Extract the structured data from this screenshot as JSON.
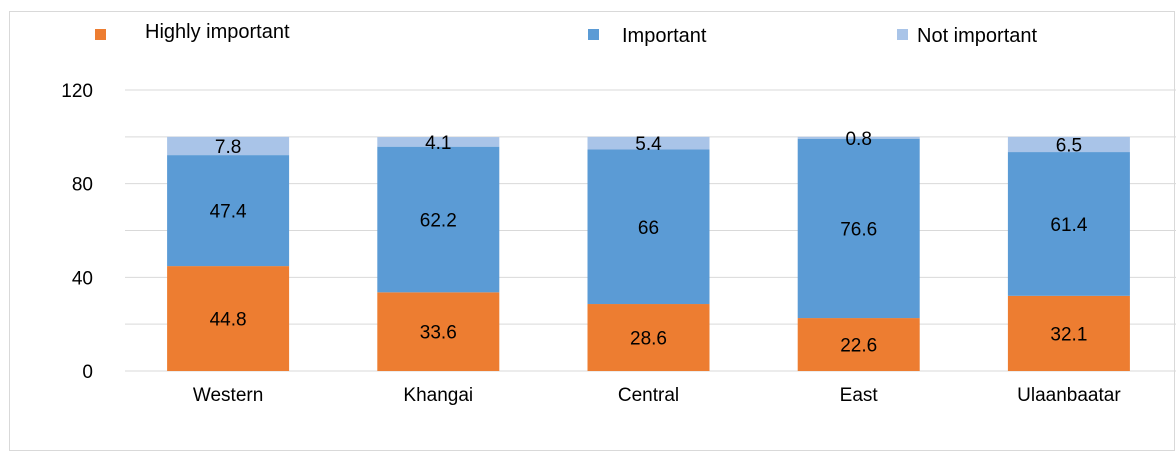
{
  "chart_data": {
    "type": "bar",
    "stacked": true,
    "categories": [
      "Western",
      "Khangai",
      "Central",
      "East",
      "Ulaanbaatar"
    ],
    "series": [
      {
        "name": "Highly important",
        "color": "#ED7D31",
        "values": [
          44.8,
          33.6,
          28.6,
          22.6,
          32.1
        ]
      },
      {
        "name": "Important",
        "color": "#5B9BD5",
        "values": [
          47.4,
          62.2,
          66,
          76.6,
          61.4
        ]
      },
      {
        "name": "Not important",
        "color": "#A9C4E8",
        "values": [
          7.8,
          4.1,
          5.4,
          0.8,
          6.5
        ]
      }
    ],
    "y_ticks": [
      0,
      40,
      80,
      120
    ],
    "ylim": [
      0,
      120
    ],
    "grid": true,
    "legend_position": "top",
    "title": "",
    "xlabel": "",
    "ylabel": ""
  }
}
